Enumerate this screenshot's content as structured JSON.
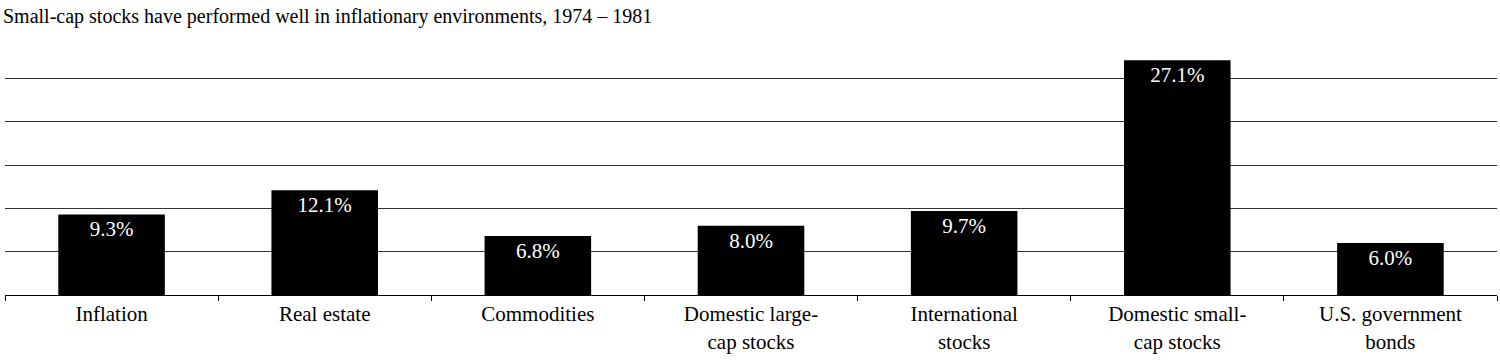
{
  "chart_data": {
    "type": "bar",
    "title": "Small-cap stocks have performed well in inflationary environments, 1974 – 1981",
    "categories": [
      "Inflation",
      "Real estate",
      "Commodities",
      "Domestic large-cap stocks",
      "International stocks",
      "Domestic small-cap stocks",
      "U.S. government bonds"
    ],
    "values": [
      9.3,
      12.1,
      6.8,
      8.0,
      9.7,
      27.1,
      6.0
    ],
    "value_labels": [
      "9.3%",
      "12.1%",
      "6.8%",
      "8.0%",
      "9.7%",
      "27.1%",
      "6.0%"
    ],
    "color": "#000000",
    "ylim": [
      0,
      30
    ],
    "yticks": [
      0,
      5,
      10,
      15,
      20,
      25,
      30
    ],
    "grid": true,
    "data_labels": true,
    "tick_labels": "x"
  }
}
